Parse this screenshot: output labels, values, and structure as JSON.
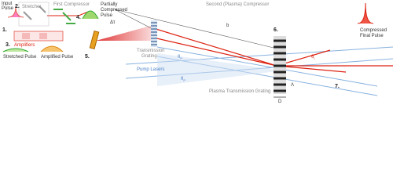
{
  "labels": {
    "input_pulse": [
      "Input",
      "Pulse"
    ],
    "step1": "1.",
    "step2": "2.",
    "stretcher": "Stretcher",
    "first_compressor": "First Compressor",
    "step4": "4.",
    "partially_compressed": [
      "Partially",
      "Compressed",
      "Pulse"
    ],
    "delta_tau": "Δτ",
    "second_compressor": "Second (Plasma) Compressor",
    "b": "b",
    "step3": "3.",
    "amplifiers": "Amplifiers",
    "stretched_pulse": "Stretched Pulse",
    "amplified_pulse": "Amplified Pulse",
    "step5": "5.",
    "transmission_grating": [
      "Transmission",
      "Grating"
    ],
    "theta_p_top": {
      "symbol": "θ",
      "sub": "P"
    },
    "pump_lasers": "Pump Lasers",
    "theta_p_bottom": {
      "symbol": "θ",
      "sub": "P"
    },
    "step6": "6.",
    "lambda": "Λ",
    "d": "D",
    "plasma_grating": "Plasma Transmission Grating",
    "theta_i": {
      "symbol": "θ",
      "sub": "I"
    },
    "step7": "7.",
    "compressed_final": [
      "Compressed",
      "Final Pulse"
    ]
  }
}
